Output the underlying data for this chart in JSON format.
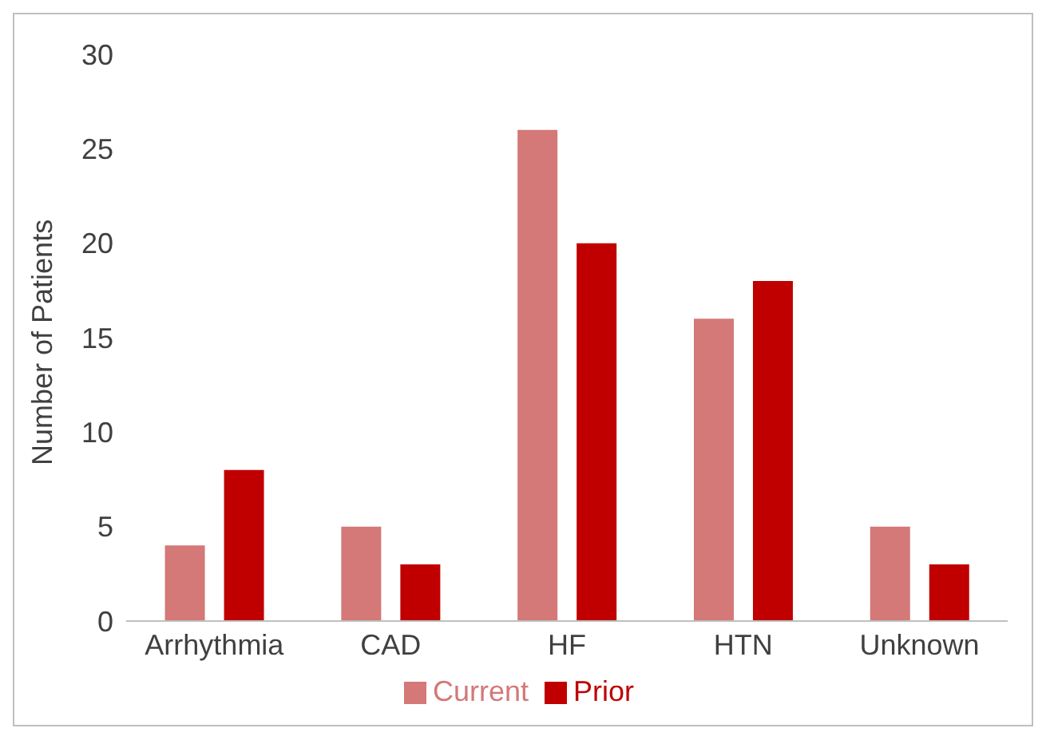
{
  "chart_data": {
    "type": "bar",
    "ylabel": "Number of Patients",
    "categories": [
      "Arrhythmia",
      "CAD",
      "HF",
      "HTN",
      "Unknown"
    ],
    "series": [
      {
        "name": "Current",
        "color": "#d47878",
        "values": [
          4,
          5,
          26,
          16,
          5
        ]
      },
      {
        "name": "Prior",
        "color": "#c00000",
        "values": [
          8,
          3,
          20,
          18,
          3
        ]
      }
    ],
    "ylim": [
      0,
      30
    ],
    "yticks": [
      0,
      5,
      10,
      15,
      20,
      25,
      30
    ],
    "grid": false,
    "legend": "bottom"
  }
}
